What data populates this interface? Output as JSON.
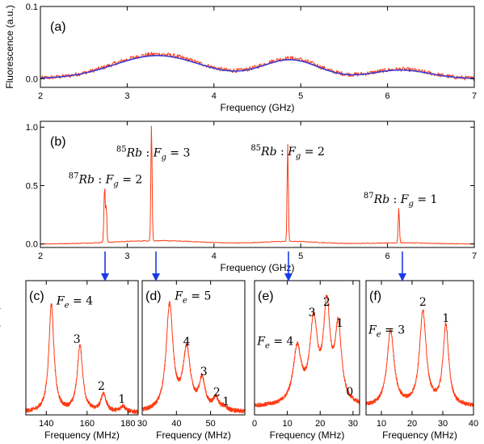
{
  "chart_data": [
    {
      "id": "a",
      "type": "line",
      "panel_label": "(a)",
      "xlabel": "Frequency (GHz)",
      "ylabel": "Fluorescence (a.u.)",
      "xlim": [
        2,
        7
      ],
      "ylim": [
        -0.012,
        0.1
      ],
      "xticks": [
        2,
        3,
        4,
        5,
        6,
        7
      ],
      "yticks": [
        0.0,
        0.1
      ],
      "ytick_labels": [
        "0.0",
        "0.1"
      ],
      "series": [
        {
          "style": "noisy",
          "color": "#ff3a12",
          "peaks": [
            [
              3.35,
              0.034,
              0.5
            ],
            [
              4.88,
              0.028,
              0.33
            ],
            [
              6.15,
              0.013,
              0.33
            ]
          ]
        },
        {
          "style": "smooth",
          "color": "#3b3bd6",
          "peaks": [
            [
              3.35,
              0.032,
              0.5
            ],
            [
              4.88,
              0.026,
              0.33
            ],
            [
              6.15,
              0.012,
              0.33
            ]
          ]
        }
      ]
    },
    {
      "id": "b",
      "type": "line",
      "panel_label": "(b)",
      "xlabel": "Frequency (GHz)",
      "xlim": [
        2,
        7
      ],
      "ylim": [
        -0.03,
        1.05
      ],
      "xticks": [
        2,
        3,
        4,
        5,
        6,
        7
      ],
      "yticks": [
        0.0,
        0.5,
        1.0
      ],
      "ytick_labels": [
        "0.0",
        "0.5",
        "1.0"
      ],
      "series": [
        {
          "style": "sharp",
          "color": "#ff3a12",
          "baseline_peaks": [
            [
              3.35,
              0.028,
              0.5
            ],
            [
              4.88,
              0.022,
              0.33
            ],
            [
              6.15,
              0.01,
              0.33
            ]
          ],
          "peaks": [
            [
              2.74,
              0.48,
              0.008
            ],
            [
              2.76,
              0.3,
              0.006
            ],
            [
              3.28,
              1.0,
              0.007
            ],
            [
              4.85,
              0.83,
              0.007
            ],
            [
              6.13,
              0.3,
              0.007
            ]
          ]
        }
      ],
      "annotations": [
        {
          "iso": "87",
          "element": "Rb",
          "F": "F",
          "sub": "g",
          "value": "= 2",
          "x": 2.75,
          "y": 0.52
        },
        {
          "iso": "85",
          "element": "Rb",
          "F": "F",
          "sub": "g",
          "value": "= 3",
          "x": 3.3,
          "y": 0.75
        },
        {
          "iso": "85",
          "element": "Rb",
          "F": "F",
          "sub": "g",
          "value": "= 2",
          "x": 4.85,
          "y": 0.76
        },
        {
          "iso": "87",
          "element": "Rb",
          "F": "F",
          "sub": "g",
          "value": "= 1",
          "x": 6.15,
          "y": 0.35
        }
      ]
    },
    {
      "id": "c",
      "type": "line",
      "panel_label": "(c)",
      "xlabel": "Frequency (MHz)",
      "ylabel": "Fluorescence (a.u.)",
      "xlim": [
        130,
        185
      ],
      "ylim": [
        0,
        1.12
      ],
      "xticks": [
        140,
        160,
        180
      ],
      "series": [
        {
          "style": "noisy-lorentz",
          "color": "#ff3a12",
          "peaks": [
            [
              142.5,
              0.9,
              1.5
            ],
            [
              156.5,
              0.55,
              1.6
            ],
            [
              168,
              0.15,
              1.5
            ],
            [
              177.5,
              0.05,
              1.5
            ]
          ]
        }
      ],
      "annotations": [
        {
          "F": "F",
          "sub": "e",
          "value": "= 4",
          "x": 145,
          "y": 0.92,
          "anchor": "start"
        },
        {
          "text": "3",
          "x": 155,
          "y": 0.6
        },
        {
          "text": "2",
          "x": 167,
          "y": 0.21
        },
        {
          "text": "1",
          "x": 177,
          "y": 0.1
        }
      ]
    },
    {
      "id": "d",
      "type": "line",
      "panel_label": "(d)",
      "xlabel": "Frequency (MHz)",
      "xlim": [
        30,
        60
      ],
      "ylim": [
        0,
        1.12
      ],
      "xticks": [
        30,
        40,
        50
      ],
      "series": [
        {
          "style": "noisy-lorentz",
          "color": "#ff3a12",
          "peaks": [
            [
              38,
              0.88,
              1.2
            ],
            [
              43,
              0.5,
              1.3
            ],
            [
              47.5,
              0.25,
              1.1
            ],
            [
              51.5,
              0.1,
              1.0
            ],
            [
              54,
              0.03,
              1.0
            ]
          ]
        }
      ],
      "annotations": [
        {
          "F": "F",
          "sub": "e",
          "value": "= 5",
          "x": 39.5,
          "y": 0.96,
          "anchor": "start"
        },
        {
          "text": "4",
          "x": 43,
          "y": 0.58
        },
        {
          "text": "3",
          "x": 48,
          "y": 0.33
        },
        {
          "text": "2",
          "x": 51.8,
          "y": 0.16
        },
        {
          "text": "1",
          "x": 54.5,
          "y": 0.08
        }
      ]
    },
    {
      "id": "e",
      "type": "line",
      "panel_label": "(e)",
      "xlabel": "Frequency (MHz)",
      "xlim": [
        0,
        32
      ],
      "ylim": [
        -0.05,
        1.12
      ],
      "xticks": [
        0,
        10,
        20,
        30
      ],
      "series": [
        {
          "style": "noisy-lorentz",
          "color": "#ff3a12",
          "peaks": [
            [
              13,
              0.48,
              1.5
            ],
            [
              18,
              0.7,
              1.4
            ],
            [
              22,
              0.82,
              1.2
            ],
            [
              25.5,
              0.65,
              1.2
            ]
          ]
        }
      ],
      "annotations": [
        {
          "F": "F",
          "sub": "e",
          "value": "= 4",
          "x": 0.8,
          "y": 0.56,
          "anchor": "start"
        },
        {
          "text": "3",
          "x": 17.5,
          "y": 0.81
        },
        {
          "text": "2",
          "x": 22,
          "y": 0.9
        },
        {
          "text": "1",
          "x": 26,
          "y": 0.72
        },
        {
          "text": "0",
          "x": 29,
          "y": 0.12
        }
      ]
    },
    {
      "id": "f",
      "type": "line",
      "panel_label": "(f)",
      "xlabel": "Frequency (MHz)",
      "xlim": [
        5,
        40
      ],
      "ylim": [
        -0.05,
        1.12
      ],
      "xticks": [
        10,
        20,
        30,
        40
      ],
      "series": [
        {
          "style": "noisy-lorentz",
          "color": "#ff3a12",
          "peaks": [
            [
              13,
              0.65,
              1.4
            ],
            [
              23.5,
              0.82,
              1.3
            ],
            [
              31,
              0.7,
              1.1
            ]
          ]
        }
      ],
      "annotations": [
        {
          "F": "F",
          "sub": "e",
          "value": "= 3",
          "x": 5.8,
          "y": 0.66,
          "anchor": "start"
        },
        {
          "text": "2",
          "x": 23.5,
          "y": 0.9
        },
        {
          "text": "1",
          "x": 31,
          "y": 0.76
        }
      ]
    }
  ]
}
